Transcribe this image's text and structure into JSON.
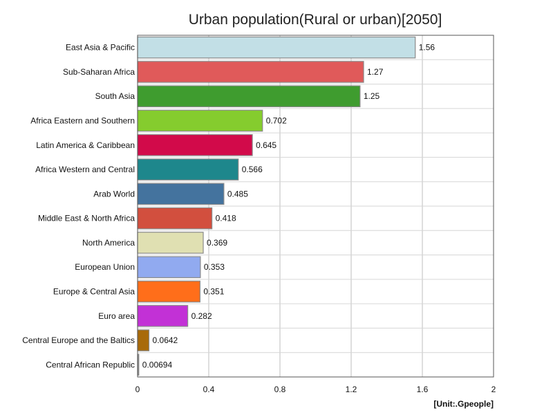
{
  "chart_data": {
    "type": "bar",
    "orientation": "horizontal",
    "title": "Urban population(Rural or urban)[2050]",
    "unit": "[Unit:.Gpeople]",
    "xlim": [
      0,
      2
    ],
    "xticks": [
      "0",
      "0.4",
      "0.8",
      "1.2",
      "1.6",
      "2"
    ],
    "grid": true,
    "categories": [
      "East Asia & Pacific",
      "Sub-Saharan Africa",
      "South Asia",
      "Africa Eastern and Southern",
      "Latin America & Caribbean",
      "Africa Western and Central",
      "Arab World",
      "Middle East & North Africa",
      "North America",
      "European Union",
      "Europe & Central Asia",
      "Euro area",
      "Central Europe and the Baltics",
      "Central African Republic"
    ],
    "values": [
      1.56,
      1.27,
      1.25,
      0.702,
      0.645,
      0.566,
      0.485,
      0.418,
      0.369,
      0.353,
      0.351,
      0.282,
      0.0642,
      0.00694
    ],
    "value_labels": [
      "1.56",
      "1.27",
      "1.25",
      "0.702",
      "0.645",
      "0.566",
      "0.485",
      "0.418",
      "0.369",
      "0.353",
      "0.351",
      "0.282",
      "0.0642",
      "0.00694"
    ],
    "colors": [
      "#c2dfe6",
      "#e05a5a",
      "#3f9c2f",
      "#85cc2e",
      "#d20a4a",
      "#1e878c",
      "#44739e",
      "#d24f3e",
      "#e0e0b2",
      "#91aaf0",
      "#ff6e1a",
      "#c231d6",
      "#a86a0a",
      "#888888"
    ]
  }
}
